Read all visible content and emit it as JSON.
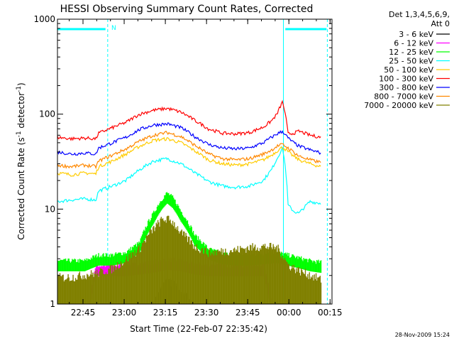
{
  "chart_data": {
    "type": "line",
    "title": "HESSI Observing Summary Count Rates, Corrected",
    "xlabel": "Start Time (22-Feb-07 22:35:42)",
    "ylabel": "Corrected Count Rate (s",
    "ylabel_sup": "-1",
    "ylabel_mid": " detector",
    "ylabel_sup2": "-1",
    "ylabel_end": ")",
    "x_unit": "minutes after 22:35:42",
    "xlim": [
      0,
      100
    ],
    "ylim": [
      1,
      1000
    ],
    "yscale": "log",
    "x_tick_labels": [
      {
        "label": "22:45",
        "t": 9.3
      },
      {
        "label": "23:00",
        "t": 24.3
      },
      {
        "label": "23:15",
        "t": 39.3
      },
      {
        "label": "23:30",
        "t": 54.3
      },
      {
        "label": "23:45",
        "t": 69.3
      },
      {
        "label": "00:00",
        "t": 84.3
      },
      {
        "label": "00:15",
        "t": 99.3
      }
    ],
    "y_tick_labels": [
      {
        "label": "1",
        "v": 1
      },
      {
        "label": "10",
        "v": 10
      },
      {
        "label": "100",
        "v": 100
      },
      {
        "label": "1000",
        "v": 1000
      }
    ],
    "legend": {
      "header": [
        "Det 1,3,4,5,6,9,",
        "Att 0"
      ],
      "placement": "right"
    },
    "annotation_N": "N",
    "footer_date": "28-Nov-2009 15:24",
    "markers": {
      "solid_lines": [
        0,
        82.3
      ],
      "dashed_lines": [
        18.3,
        98.3
      ],
      "bars": [
        [
          0,
          17.5
        ],
        [
          83,
          98
        ]
      ]
    },
    "series": [
      {
        "name": "3 - 6 keV",
        "color": "#000000",
        "kind": "noise",
        "x": [
          0,
          5,
          10,
          15,
          20,
          25,
          30,
          35,
          38,
          40,
          44,
          48,
          55,
          60,
          65,
          70,
          75,
          80,
          84,
          88,
          92,
          96
        ],
        "y": [
          0,
          0,
          0,
          0,
          0,
          0,
          0,
          1.05,
          1.3,
          1.6,
          1.3,
          1.05,
          0,
          0,
          0,
          0,
          0,
          0,
          0,
          0,
          0,
          0
        ]
      },
      {
        "name": "6 - 12 keV",
        "color": "#ff00ff",
        "kind": "band",
        "x": [
          0,
          10,
          14,
          20,
          25,
          30,
          35,
          40,
          45,
          50,
          55,
          60,
          65,
          70,
          75,
          80,
          84,
          88,
          92,
          96
        ],
        "y": [
          0,
          0,
          2.4,
          2.4,
          2.4,
          2.5,
          2.6,
          2.8,
          2.7,
          2.5,
          2.4,
          2.4,
          2.4,
          2.4,
          2.4,
          0,
          0,
          0,
          0,
          0
        ]
      },
      {
        "name": "12 - 25 keV",
        "color": "#00ff00",
        "kind": "band",
        "x": [
          0,
          5,
          10,
          15,
          20,
          25,
          30,
          35,
          38,
          40,
          42,
          45,
          50,
          55,
          60,
          65,
          70,
          75,
          80,
          84,
          88,
          92,
          96
        ],
        "y": [
          2.7,
          2.7,
          2.7,
          3.1,
          3.1,
          3.3,
          4.2,
          8.5,
          12,
          14,
          12.5,
          9,
          5,
          3.6,
          3.2,
          3.1,
          3.1,
          3.2,
          3.3,
          3.1,
          2.9,
          2.7,
          2.6
        ]
      },
      {
        "name": "25 - 50 keV",
        "color": "#00ffff",
        "kind": "line",
        "x": [
          0,
          5,
          10,
          14,
          15,
          20,
          25,
          30,
          35,
          40,
          45,
          50,
          55,
          60,
          65,
          70,
          75,
          78,
          80,
          82,
          84,
          86,
          88,
          92,
          96
        ],
        "y": [
          12,
          12.5,
          12.8,
          12.5,
          15.5,
          17.5,
          20,
          26,
          32,
          34,
          30,
          24,
          19.5,
          17.5,
          17,
          17.5,
          20,
          26,
          34,
          44,
          11,
          9.5,
          9,
          12,
          11.5
        ]
      },
      {
        "name": "50 - 100 keV",
        "color": "#ffcc00",
        "kind": "line",
        "x": [
          0,
          5,
          10,
          14,
          15,
          20,
          25,
          30,
          35,
          40,
          45,
          50,
          55,
          60,
          65,
          70,
          75,
          78,
          80,
          82,
          84,
          86,
          88,
          92,
          96
        ],
        "y": [
          24,
          23,
          24,
          23.5,
          28,
          32,
          38,
          46,
          53,
          55,
          50,
          41,
          33,
          30,
          29,
          30,
          33,
          37,
          41,
          45,
          40,
          36,
          33,
          30,
          28
        ]
      },
      {
        "name": "100 - 300 keV",
        "color": "#ff0000",
        "kind": "line",
        "x": [
          0,
          5,
          10,
          14,
          15,
          20,
          25,
          30,
          35,
          40,
          45,
          50,
          55,
          60,
          65,
          70,
          75,
          78,
          80,
          82,
          84,
          86,
          88,
          92,
          96
        ],
        "y": [
          57,
          55,
          56,
          55,
          63,
          72,
          82,
          100,
          110,
          115,
          105,
          86,
          70,
          63,
          62,
          64,
          73,
          85,
          100,
          135,
          62,
          63,
          66,
          60,
          57
        ]
      },
      {
        "name": "300 - 800 keV",
        "color": "#0000ff",
        "kind": "line",
        "x": [
          0,
          5,
          10,
          14,
          15,
          20,
          25,
          30,
          35,
          40,
          45,
          50,
          55,
          60,
          65,
          70,
          75,
          78,
          80,
          82,
          84,
          86,
          88,
          92,
          96
        ],
        "y": [
          40,
          38,
          39,
          38,
          44,
          50,
          57,
          69,
          77,
          79,
          72,
          58,
          48,
          44,
          43,
          44,
          50,
          57,
          62,
          66,
          56,
          50,
          46,
          42,
          39
        ]
      },
      {
        "name": "800 - 7000 keV",
        "color": "#ff8800",
        "kind": "line",
        "x": [
          0,
          5,
          10,
          14,
          15,
          20,
          25,
          30,
          35,
          40,
          45,
          50,
          55,
          60,
          65,
          70,
          75,
          78,
          80,
          82,
          84,
          86,
          88,
          92,
          96
        ],
        "y": [
          29,
          28,
          29,
          28,
          32,
          37,
          43,
          52,
          60,
          64,
          58,
          47,
          38,
          34,
          33,
          34,
          38,
          42,
          46,
          48,
          44,
          40,
          36,
          33,
          31
        ]
      },
      {
        "name": "7000 - 20000 keV",
        "color": "#808000",
        "kind": "noise",
        "x": [
          0,
          5,
          10,
          15,
          20,
          25,
          30,
          35,
          38,
          40,
          42,
          45,
          50,
          55,
          60,
          65,
          70,
          75,
          80,
          84,
          88,
          92,
          96
        ],
        "y": [
          1.7,
          1.7,
          1.8,
          1.9,
          2.1,
          2.6,
          3.4,
          5.5,
          6.8,
          7,
          6.5,
          5,
          3.6,
          3.1,
          3.2,
          3.3,
          3.5,
          3.6,
          3.5,
          2.3,
          2.0,
          1.8,
          1.6
        ]
      }
    ]
  }
}
